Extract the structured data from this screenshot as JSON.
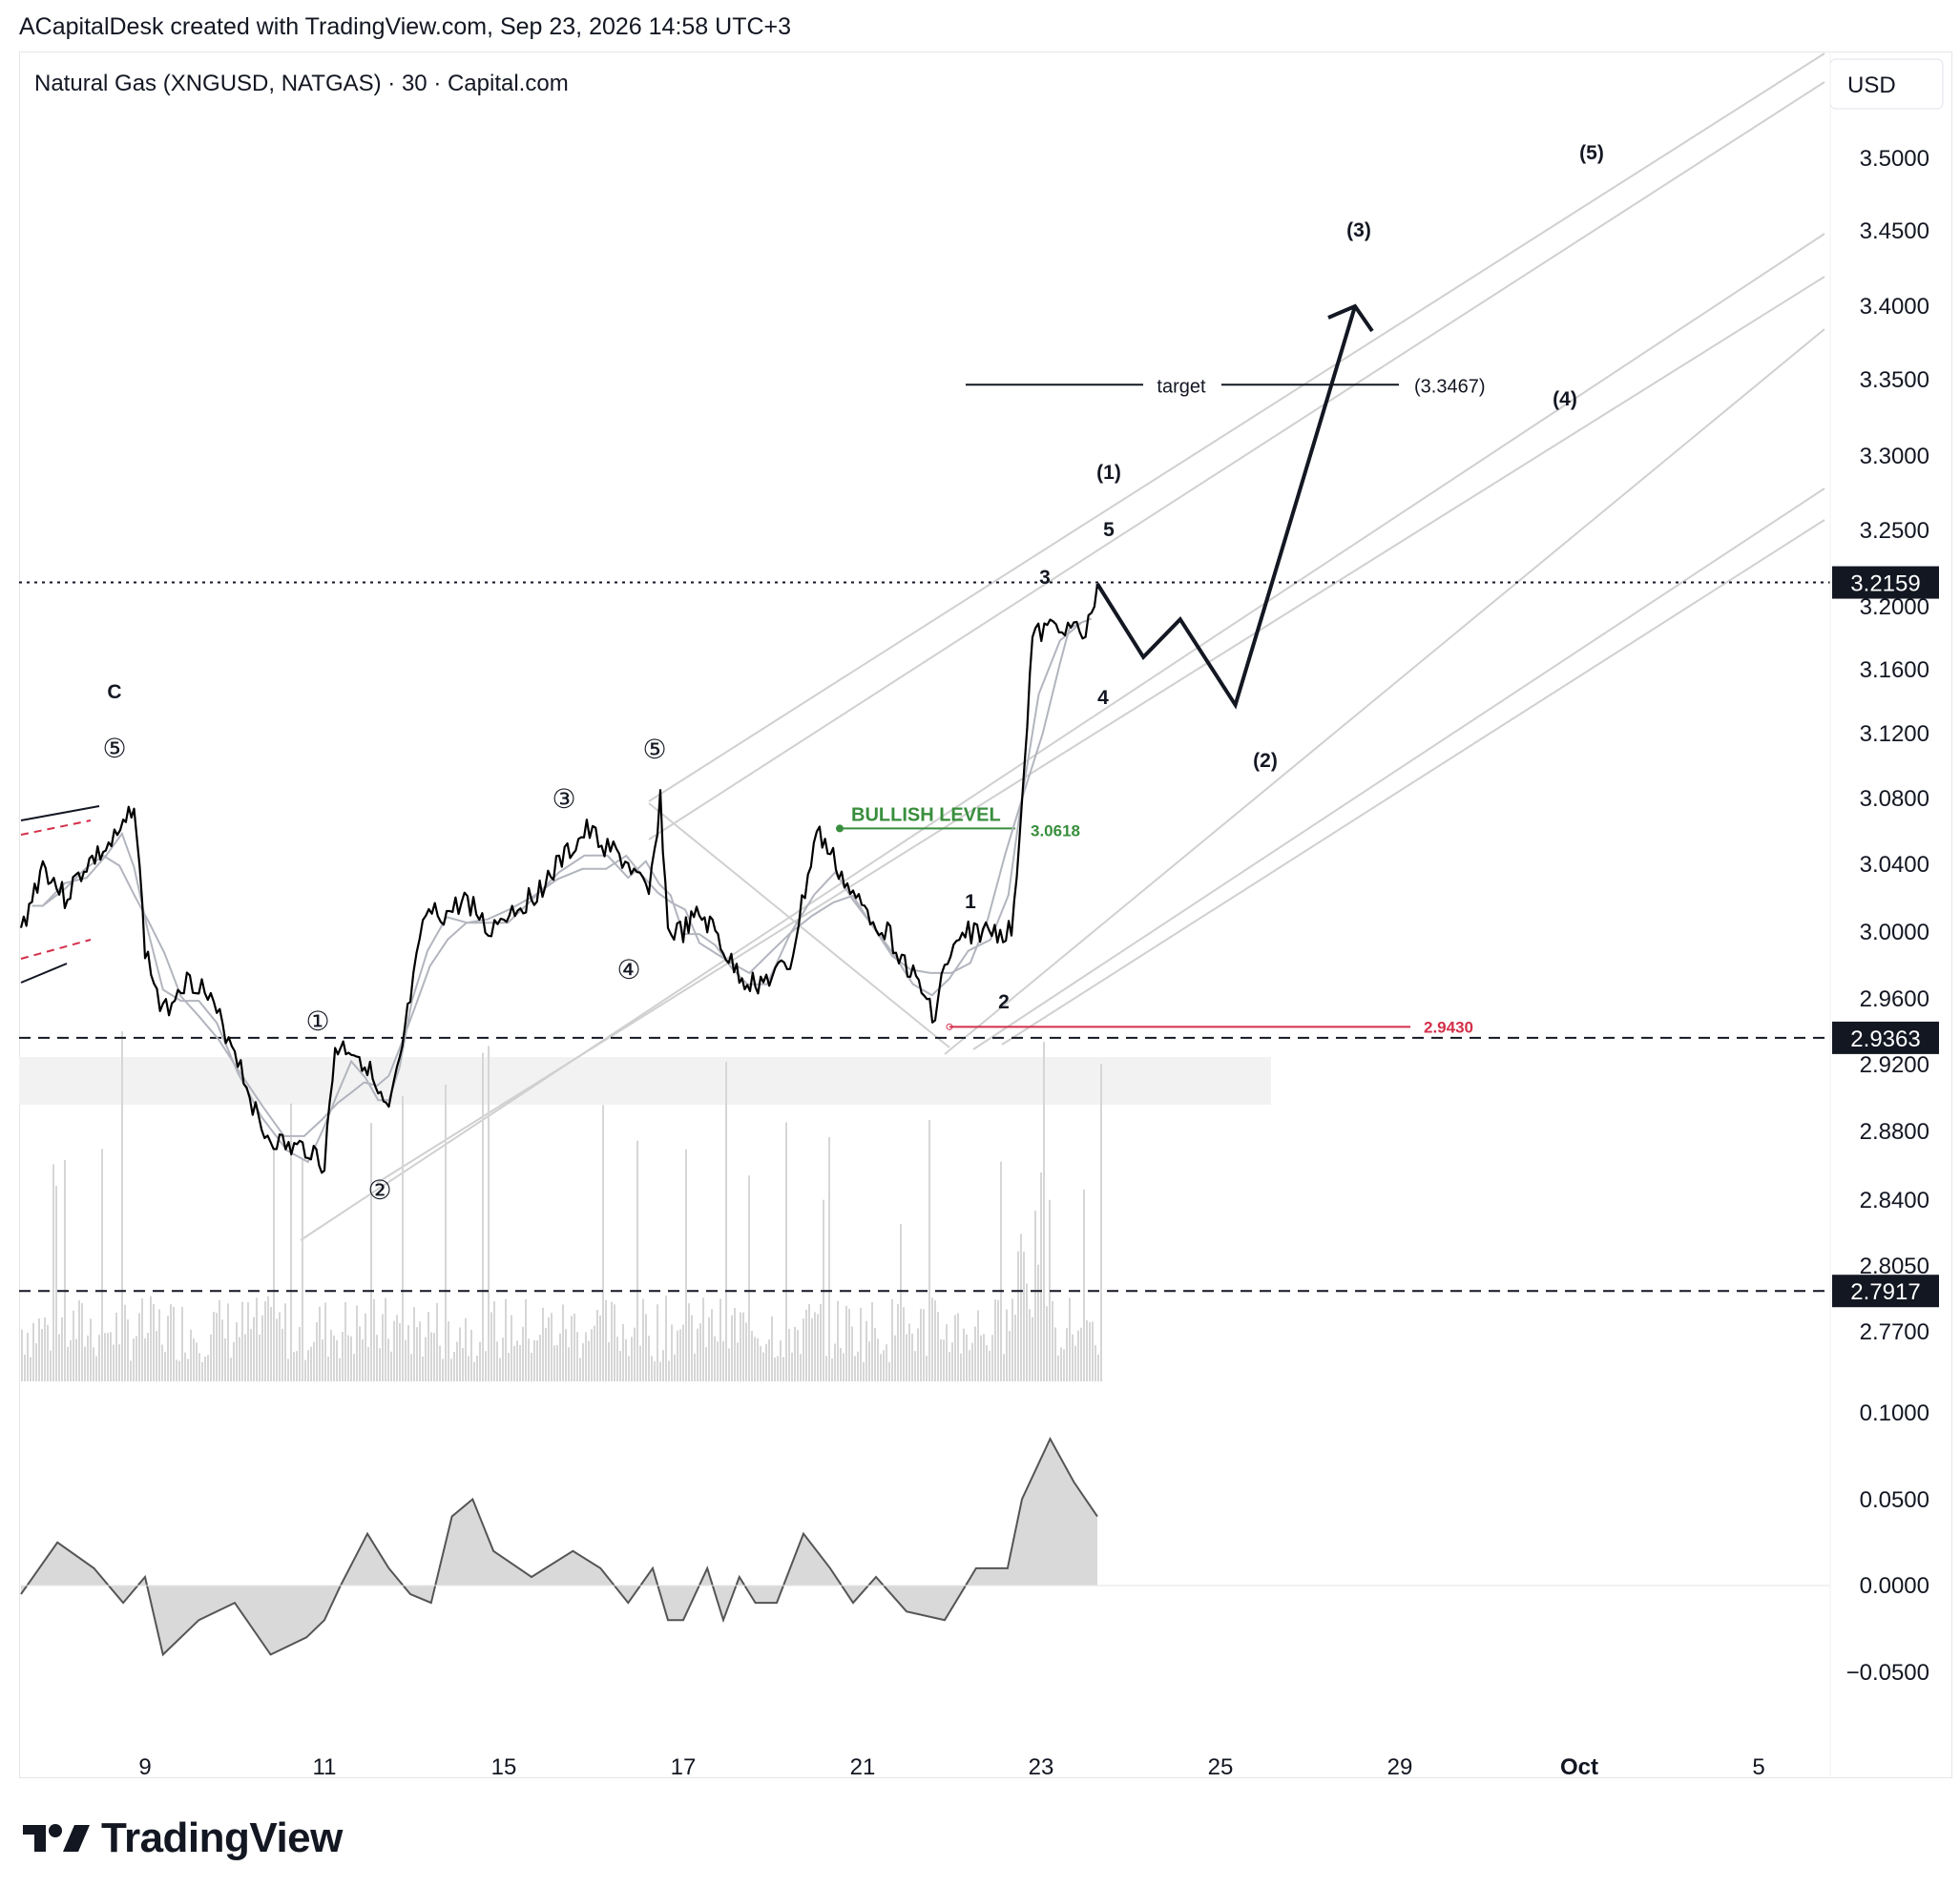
{
  "header": {
    "attribution": "ACapitalDesk created with TradingView.com, Sep 23, 2026 14:58 UTC+3"
  },
  "symbol": {
    "title": "Natural Gas (XNGUSD, NATGAS) · 30 · Capital.com",
    "currency": "USD"
  },
  "footer": {
    "brand": "TradingView"
  },
  "colors": {
    "price": "#000000",
    "ma": "#b2b5be",
    "channel": "#d0d0d0",
    "bullish": "#388e3c",
    "stop": "#d32f4a",
    "volume": "#d6d6d6",
    "osc_fill": "#d9d9d9",
    "osc_line": "#555555",
    "support_zone": "#f2f2f2"
  },
  "chart_data": {
    "type": "line",
    "title": "Natural Gas (XNGUSD, NATGAS) · 30 · Capital.com",
    "xlabel": "",
    "ylabel": "",
    "x_ticks": [
      "9",
      "11",
      "15",
      "17",
      "21",
      "23",
      "25",
      "29",
      "Oct",
      "5"
    ],
    "y_ticks": [
      "3.5000",
      "3.4500",
      "3.4000",
      "3.3500",
      "3.3000",
      "3.2500",
      "3.2000",
      "3.1600",
      "3.1200",
      "3.0800",
      "3.0400",
      "3.0000",
      "2.9600",
      "2.9200",
      "2.8800",
      "2.8400",
      "2.8050",
      "2.7700"
    ],
    "price_badges": [
      {
        "label": "3.2159",
        "value": 3.2159,
        "style": "dotted"
      },
      {
        "label": "2.9363",
        "value": 2.9363,
        "style": "dashed"
      },
      {
        "label": "2.7917",
        "value": 2.7917,
        "style": "dashed"
      }
    ],
    "series": [
      {
        "x": [
          7.3,
          7.6,
          7.9,
          8.2,
          8.5,
          8.7,
          8.85,
          9.0,
          9.2,
          9.4,
          9.6,
          9.8,
          10.0,
          10.3,
          10.6,
          10.85,
          11.0,
          11.2,
          11.5,
          11.8,
          12.0,
          12.2,
          12.4,
          12.6,
          12.9,
          13.3,
          13.7,
          14.1,
          14.4,
          14.8,
          15.2,
          15.6,
          15.9,
          16.2,
          16.5,
          16.8,
          17.0,
          17.4,
          17.8,
          18.2,
          18.6,
          19.0,
          19.4,
          19.8,
          20.2,
          20.5,
          20.8,
          21.1,
          21.4,
          21.7,
          21.9,
          22.0,
          22.3,
          22.6,
          22.85,
          23.0,
          23.15,
          23.4,
          23.6,
          23.7
        ],
        "y": [
          3.0,
          3.04,
          3.02,
          3.04,
          3.05,
          3.06,
          3.08,
          2.99,
          2.95,
          2.97,
          2.97,
          2.95,
          2.93,
          2.88,
          2.87,
          2.87,
          2.86,
          2.93,
          2.93,
          2.92,
          2.9,
          2.89,
          2.92,
          2.96,
          3.01,
          3.01,
          3.02,
          3.0,
          3.01,
          3.02,
          3.04,
          3.06,
          3.05,
          3.04,
          3.02,
          3.08,
          3.0,
          3.0,
          3.01,
          3.0,
          2.98,
          2.97,
          2.97,
          2.98,
          3.06,
          3.04,
          3.02,
          3.01,
          3.0,
          2.97,
          2.95,
          2.98,
          3.0,
          3.0,
          3.0,
          3.08,
          3.18,
          3.19,
          3.18,
          3.215
        ]
      }
    ],
    "projection": {
      "x": [
        23.7,
        24.2,
        24.6,
        25.2,
        26.5
      ],
      "y": [
        3.215,
        3.168,
        3.192,
        3.138,
        3.4
      ]
    },
    "levels": [
      {
        "label": "target",
        "value_label": "(3.3467)",
        "value": 3.3467
      },
      {
        "label": "BULLISH LEVEL",
        "value_label": "3.0618",
        "value": 3.0618
      },
      {
        "label": "",
        "value_label": "2.9430",
        "value": 2.943
      }
    ],
    "wave_labels": {
      "circled": [
        "⑤",
        "①",
        "②",
        "③",
        "④",
        "⑤"
      ],
      "minor": [
        "C",
        "1",
        "2",
        "3",
        "4",
        "5"
      ],
      "major": [
        "(1)",
        "(2)",
        "(3)",
        "(4)",
        "(5)"
      ]
    },
    "oscillator": {
      "y_ticks": [
        "0.1000",
        "0.0500",
        "0.0000",
        "−0.0500"
      ],
      "x": [
        7.3,
        7.8,
        8.3,
        8.7,
        9.0,
        9.2,
        9.6,
        10.0,
        10.4,
        10.8,
        11.0,
        11.3,
        11.8,
        12.2,
        12.6,
        13.0,
        13.4,
        13.8,
        14.2,
        14.8,
        15.4,
        15.8,
        16.2,
        16.6,
        17.0,
        17.4,
        18.0,
        18.4,
        18.8,
        19.2,
        19.6,
        20.0,
        20.4,
        20.8,
        21.2,
        21.6,
        22.0,
        22.4,
        22.8,
        23.0,
        23.3,
        23.5,
        23.7
      ],
      "y": [
        -0.005,
        0.025,
        0.01,
        -0.01,
        0.005,
        -0.04,
        -0.02,
        -0.01,
        -0.04,
        -0.03,
        -0.02,
        0.0,
        0.03,
        0.01,
        -0.005,
        -0.01,
        0.04,
        0.05,
        0.02,
        0.005,
        0.02,
        0.01,
        -0.01,
        0.01,
        -0.02,
        -0.02,
        0.01,
        -0.02,
        0.005,
        -0.01,
        -0.01,
        0.03,
        0.01,
        -0.01,
        0.005,
        -0.015,
        -0.02,
        0.01,
        0.01,
        0.05,
        0.085,
        0.06,
        0.04
      ]
    }
  }
}
